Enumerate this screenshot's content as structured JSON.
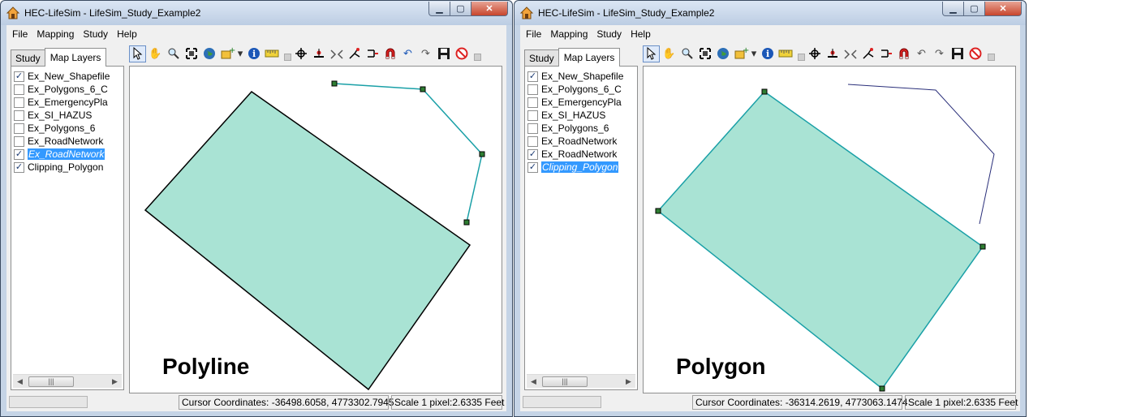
{
  "windows": [
    {
      "title": "HEC-LifeSim - LifeSim_Study_Example2",
      "menu": [
        "File",
        "Mapping",
        "Study",
        "Help"
      ],
      "tabs": [
        "Study",
        "Map Layers"
      ],
      "layers": [
        {
          "name": "Ex_New_Shapefile",
          "checked": true,
          "selected": false
        },
        {
          "name": "Ex_Polygons_6_C",
          "checked": false,
          "selected": false
        },
        {
          "name": "Ex_EmergencyPla",
          "checked": false,
          "selected": false
        },
        {
          "name": "Ex_SI_HAZUS",
          "checked": false,
          "selected": false
        },
        {
          "name": "Ex_Polygons_6",
          "checked": false,
          "selected": false
        },
        {
          "name": "Ex_RoadNetwork",
          "checked": false,
          "selected": false
        },
        {
          "name": "Ex_RoadNetwork",
          "checked": true,
          "selected": true
        },
        {
          "name": "Clipping_Polygon",
          "checked": true,
          "selected": false
        }
      ],
      "map_label": "Polyline",
      "status": {
        "coords": "Cursor Coordinates: -36498.6058, 4773302.7945",
        "scale": "Scale 1 pixel:2.6335 Feet"
      }
    },
    {
      "title": "HEC-LifeSim - LifeSim_Study_Example2",
      "menu": [
        "File",
        "Mapping",
        "Study",
        "Help"
      ],
      "tabs": [
        "Study",
        "Map Layers"
      ],
      "layers": [
        {
          "name": "Ex_New_Shapefile",
          "checked": true,
          "selected": false
        },
        {
          "name": "Ex_Polygons_6_C",
          "checked": false,
          "selected": false
        },
        {
          "name": "Ex_EmergencyPla",
          "checked": false,
          "selected": false
        },
        {
          "name": "Ex_SI_HAZUS",
          "checked": false,
          "selected": false
        },
        {
          "name": "Ex_Polygons_6",
          "checked": false,
          "selected": false
        },
        {
          "name": "Ex_RoadNetwork",
          "checked": false,
          "selected": false
        },
        {
          "name": "Ex_RoadNetwork",
          "checked": true,
          "selected": false
        },
        {
          "name": "Clipping_Polygon",
          "checked": true,
          "selected": true
        }
      ],
      "map_label": "Polygon",
      "status": {
        "coords": "Cursor Coordinates: -36314.2619, 4773063.1474",
        "scale": "Scale 1 pixel:2.6335 Feet"
      }
    }
  ],
  "toolbar_icons": [
    "select-arrow-icon",
    "pan-hand-icon",
    "zoom-icon",
    "zoom-extent-icon",
    "globe-icon",
    "add-layer-icon",
    "dropdown-arrow-icon",
    "identify-info-icon",
    "measure-ruler-icon",
    "overflow-icon",
    "add-vertex-crosshair-icon",
    "insert-point-icon",
    "split-line-icon",
    "merge-lines-icon",
    "reshape-icon",
    "snap-magnet-icon",
    "undo-icon",
    "redo-icon",
    "save-edits-icon",
    "stop-editing-icon",
    "overflow-icon"
  ],
  "colors": {
    "polygon_fill": "#a9e3d4",
    "polyline_stroke": "#1aa0a7",
    "vertex_fill": "#2e7d32",
    "selection_highlight": "#3399ff"
  }
}
